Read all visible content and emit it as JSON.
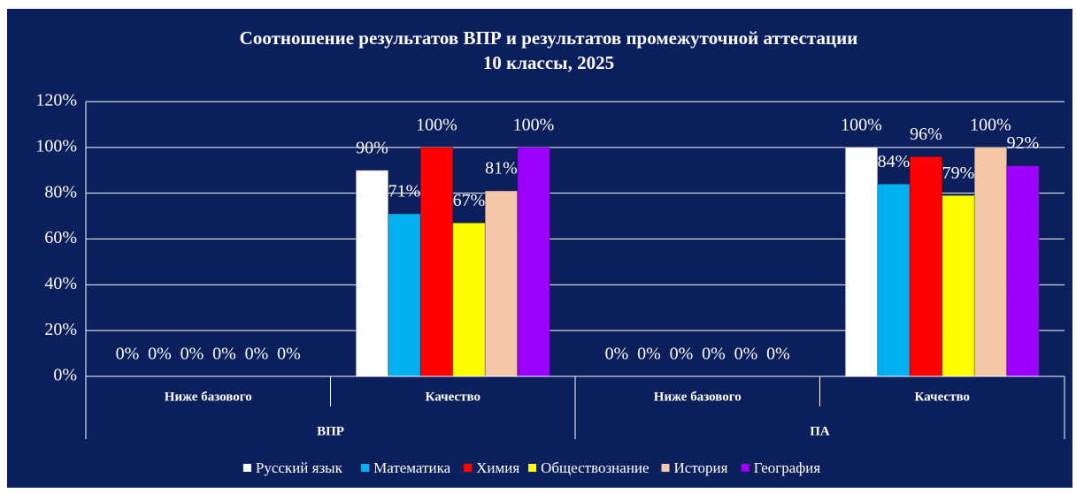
{
  "chart_data": {
    "type": "bar",
    "title": "Соотношение результатов ВПР и результатов промежуточной аттестации",
    "subtitle": "10 классы, 2025",
    "categories": [
      "Ниже базового",
      "Качество",
      "Ниже базового",
      "Качество"
    ],
    "groups": [
      "ВПР",
      "ПА"
    ],
    "series": [
      {
        "name": "Русский язык",
        "color": "#ffffff",
        "values": [
          0,
          90,
          0,
          100
        ],
        "value_labels": [
          "0%",
          "90%",
          "0%",
          "100%"
        ]
      },
      {
        "name": "Математика",
        "color": "#00b0f0",
        "values": [
          0,
          71,
          0,
          84
        ],
        "value_labels": [
          "0%",
          "71%",
          "0%",
          "84%"
        ]
      },
      {
        "name": "Химия",
        "color": "#ff0000",
        "values": [
          0,
          100,
          0,
          96
        ],
        "value_labels": [
          "0%",
          "100%",
          "0%",
          "96%"
        ]
      },
      {
        "name": "Обществознание",
        "color": "#ffff00",
        "values": [
          0,
          67,
          0,
          79
        ],
        "value_labels": [
          "0%",
          "67%",
          "0%",
          "79%"
        ]
      },
      {
        "name": "История",
        "color": "#f4c7a8",
        "values": [
          0,
          81,
          0,
          100
        ],
        "value_labels": [
          "0%",
          "81%",
          "0%",
          "100%"
        ]
      },
      {
        "name": "География",
        "color": "#9b00ff",
        "values": [
          0,
          100,
          0,
          92
        ],
        "value_labels": [
          "0%",
          "100%",
          "0%",
          "92%"
        ]
      }
    ],
    "ylim": [
      0,
      120
    ],
    "yticks": [
      {
        "value": 0,
        "label": "0%"
      },
      {
        "value": 20,
        "label": "20%"
      },
      {
        "value": 40,
        "label": "40%"
      },
      {
        "value": 60,
        "label": "60%"
      },
      {
        "value": 80,
        "label": "80%"
      },
      {
        "value": 100,
        "label": "100%"
      },
      {
        "value": 120,
        "label": "120%"
      }
    ],
    "grid": true
  }
}
